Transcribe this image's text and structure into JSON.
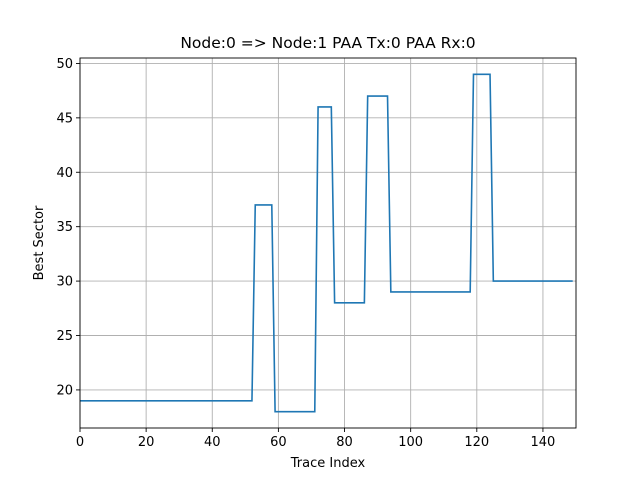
{
  "chart_data": {
    "type": "line",
    "title": "Node:0 => Node:1 PAA Tx:0 PAA Rx:0",
    "xlabel": "Trace Index",
    "ylabel": "Best Sector",
    "xlim": [
      0,
      150
    ],
    "ylim": [
      16.5,
      50.5
    ],
    "grid": true,
    "x_ticks": [
      0,
      20,
      40,
      60,
      80,
      100,
      120,
      140
    ],
    "y_ticks": [
      20,
      25,
      30,
      35,
      40,
      45,
      50
    ],
    "color": "#1f77b4",
    "series": [
      {
        "x": [
          0,
          52,
          53,
          58,
          59,
          71,
          72,
          76,
          77,
          86,
          87,
          93,
          94,
          118,
          119,
          124,
          125,
          149
        ],
        "y": [
          19,
          19,
          37,
          37,
          18,
          18,
          46,
          46,
          28,
          28,
          47,
          47,
          29,
          29,
          49,
          49,
          30,
          30
        ]
      }
    ]
  }
}
